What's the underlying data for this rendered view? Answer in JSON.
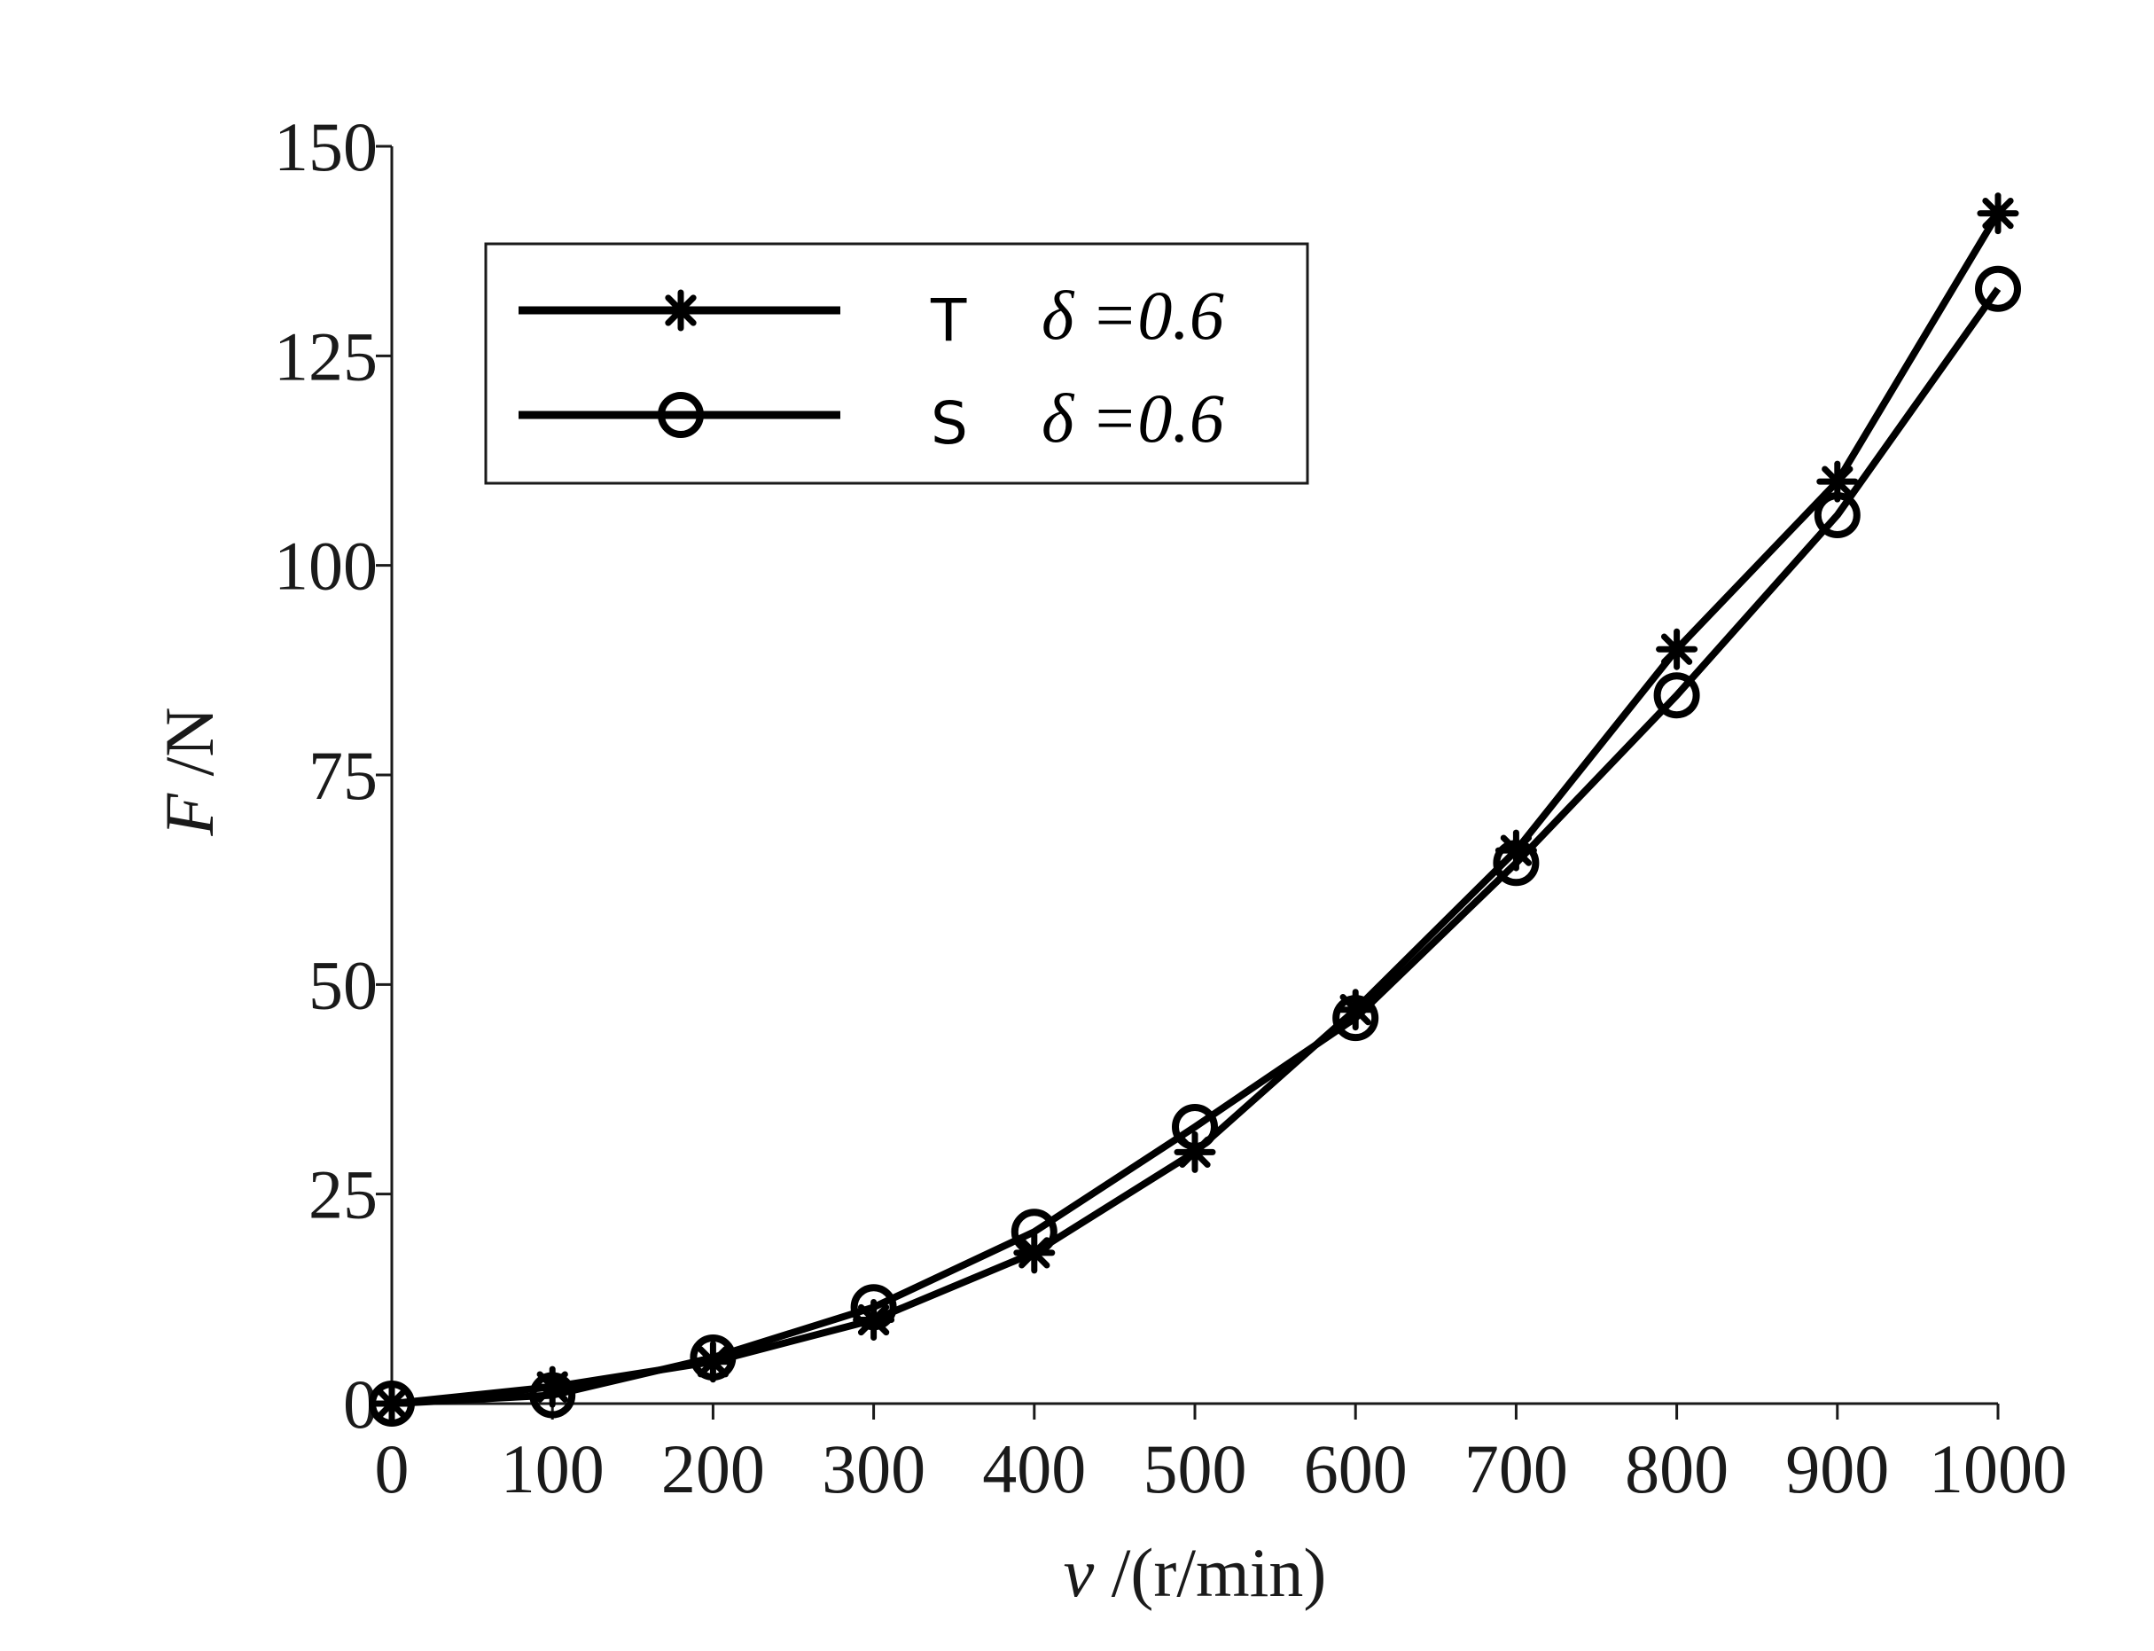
{
  "chart_data": {
    "type": "line",
    "title": "",
    "xlabel": {
      "var": "v",
      "unit": " /(r/min)"
    },
    "ylabel": {
      "var": "F",
      "unit": " /N"
    },
    "xlim": [
      0,
      1000
    ],
    "ylim": [
      0,
      150
    ],
    "x": [
      0,
      100,
      200,
      300,
      400,
      500,
      600,
      700,
      800,
      900,
      1000
    ],
    "xticks": [
      "0",
      "100",
      "200",
      "300",
      "400",
      "500",
      "600",
      "700",
      "800",
      "900",
      "1000"
    ],
    "yticks": [
      "0",
      "25",
      "50",
      "75",
      "100",
      "125",
      "150"
    ],
    "ytick_values": [
      0,
      25,
      50,
      75,
      100,
      125,
      150
    ],
    "grid": false,
    "legend_position": "top-left",
    "series": [
      {
        "name": "T",
        "param": "δ =0.6",
        "marker": "asterisk",
        "color": "#000000",
        "values": [
          0,
          2,
          5,
          10,
          18,
          30,
          47,
          66,
          90,
          110,
          142
        ]
      },
      {
        "name": "S",
        "param": "δ =0.6",
        "marker": "circle",
        "color": "#000000",
        "values": [
          0,
          1,
          5.5,
          11.5,
          20.5,
          33,
          46,
          64.5,
          84.5,
          106,
          133
        ]
      }
    ]
  }
}
